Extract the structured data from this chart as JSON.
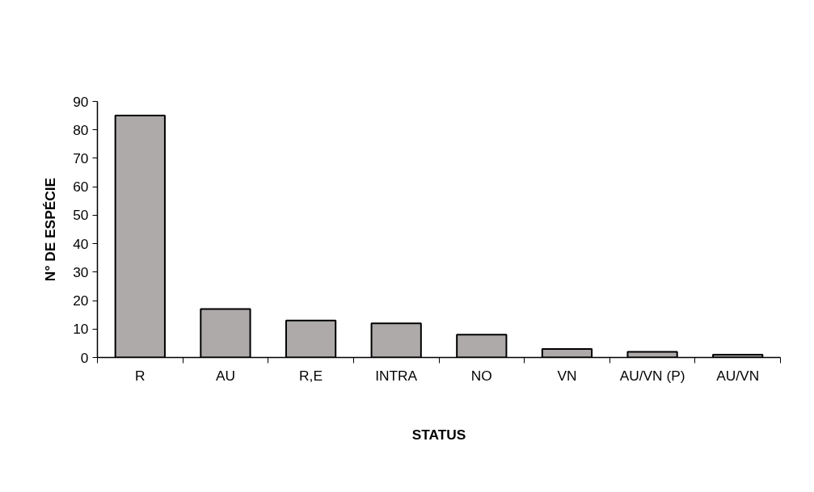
{
  "chart_data": {
    "type": "bar",
    "xlabel": "STATUS",
    "ylabel": "N° DE ESPÉCIE",
    "categories": [
      "R",
      "AU",
      "R,E",
      "INTRA",
      "NO",
      "VN",
      "AU/VN (P)",
      "AU/VN"
    ],
    "values": [
      85,
      17,
      13,
      12,
      8,
      3,
      2,
      1
    ],
    "color": "#aeaaaa",
    "ylim": [
      0,
      90
    ],
    "yticks": [
      0,
      10,
      20,
      30,
      40,
      50,
      60,
      70,
      80,
      90
    ],
    "grid": false
  }
}
